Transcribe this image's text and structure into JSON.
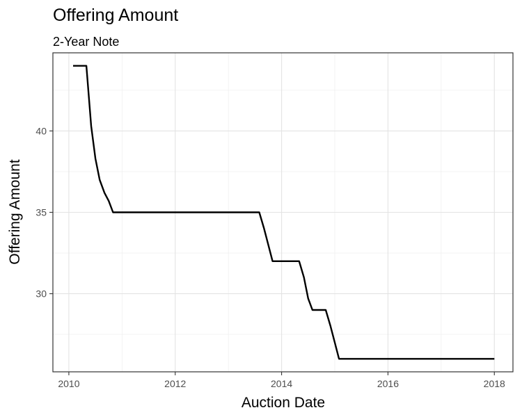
{
  "chart_data": {
    "type": "line",
    "title": "Offering Amount",
    "subtitle": "2-Year Note",
    "xlabel": "Auction Date",
    "ylabel": "Offering Amount",
    "xlim": [
      2009.7,
      2018.35
    ],
    "ylim": [
      25.2,
      44.8
    ],
    "x_ticks": [
      2010,
      2012,
      2014,
      2016,
      2018
    ],
    "x_tick_labels": [
      "2010",
      "2012",
      "2014",
      "2016",
      "2018"
    ],
    "y_ticks": [
      30,
      35,
      40
    ],
    "y_tick_labels": [
      "30",
      "35",
      "40"
    ],
    "grid": true,
    "legend": "none",
    "series": [
      {
        "color": "#000000",
        "x": [
          2010.08,
          2010.33,
          2010.42,
          2010.5,
          2010.58,
          2010.67,
          2010.75,
          2010.83,
          2011.0,
          2012.0,
          2013.0,
          2013.58,
          2013.67,
          2013.75,
          2013.83,
          2014.0,
          2014.33,
          2014.42,
          2014.5,
          2014.58,
          2014.83,
          2014.92,
          2015.0,
          2015.08,
          2015.5,
          2016.0,
          2017.0,
          2018.0
        ],
        "y": [
          44,
          44,
          40.3,
          38.3,
          37,
          36.2,
          35.7,
          35,
          35,
          35,
          35,
          35,
          34,
          33,
          32,
          32,
          32,
          31,
          29.7,
          29,
          29,
          28,
          27,
          26,
          26,
          26,
          26,
          26
        ]
      }
    ]
  }
}
